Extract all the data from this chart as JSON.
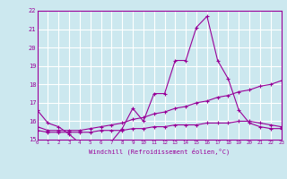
{
  "xlabel": "Windchill (Refroidissement éolien,°C)",
  "background_color": "#cce8ef",
  "grid_color": "#ffffff",
  "line_color": "#990099",
  "spine_color": "#990099",
  "xmin": 0,
  "xmax": 23,
  "ymin": 15,
  "ymax": 22,
  "x_ticks": [
    0,
    1,
    2,
    3,
    4,
    5,
    6,
    7,
    8,
    9,
    10,
    11,
    12,
    13,
    14,
    15,
    16,
    17,
    18,
    19,
    20,
    21,
    22,
    23
  ],
  "y_ticks": [
    15,
    16,
    17,
    18,
    19,
    20,
    21,
    22
  ],
  "line1_x": [
    0,
    1,
    2,
    3,
    4,
    5,
    6,
    7,
    8,
    9,
    10,
    11,
    12,
    13,
    14,
    15,
    16,
    17,
    18,
    19,
    20,
    21,
    22,
    23
  ],
  "line1_y": [
    16.6,
    15.9,
    15.7,
    15.3,
    14.8,
    14.8,
    14.8,
    14.9,
    15.6,
    16.7,
    16.0,
    17.5,
    17.5,
    19.3,
    19.3,
    21.1,
    21.7,
    19.3,
    18.3,
    16.6,
    15.9,
    15.7,
    15.6,
    15.6
  ],
  "line2_x": [
    0,
    1,
    2,
    3,
    4,
    5,
    6,
    7,
    8,
    9,
    10,
    11,
    12,
    13,
    14,
    15,
    16,
    17,
    18,
    19,
    20,
    21,
    22,
    23
  ],
  "line2_y": [
    15.7,
    15.5,
    15.5,
    15.5,
    15.5,
    15.6,
    15.7,
    15.8,
    15.9,
    16.1,
    16.2,
    16.4,
    16.5,
    16.7,
    16.8,
    17.0,
    17.1,
    17.3,
    17.4,
    17.6,
    17.7,
    17.9,
    18.0,
    18.2
  ],
  "line3_x": [
    0,
    1,
    2,
    3,
    4,
    5,
    6,
    7,
    8,
    9,
    10,
    11,
    12,
    13,
    14,
    15,
    16,
    17,
    18,
    19,
    20,
    21,
    22,
    23
  ],
  "line3_y": [
    15.5,
    15.4,
    15.4,
    15.4,
    15.4,
    15.4,
    15.5,
    15.5,
    15.5,
    15.6,
    15.6,
    15.7,
    15.7,
    15.8,
    15.8,
    15.8,
    15.9,
    15.9,
    15.9,
    16.0,
    16.0,
    15.9,
    15.8,
    15.7
  ]
}
